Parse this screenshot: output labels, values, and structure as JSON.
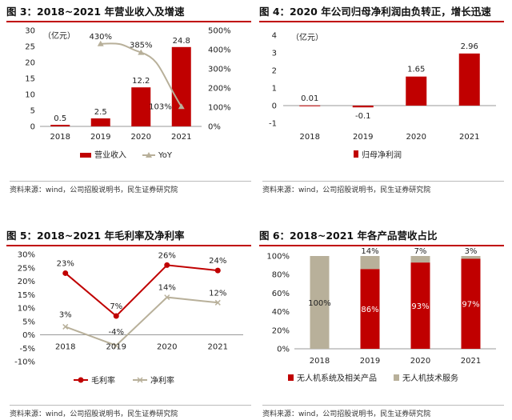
{
  "charts": [
    {
      "title": "图 3：2018~2021 年营业收入及增速",
      "source": "资料来源：wind，公司招股说明书，民生证券研究院",
      "chart_data": {
        "type": "bar+line",
        "categories": [
          "2018",
          "2019",
          "2020",
          "2021"
        ],
        "unit": "（亿元）",
        "bar": {
          "name": "营业收入",
          "values": [
            0.5,
            2.5,
            12.2,
            24.8
          ],
          "labels": [
            "0.5",
            "2.5",
            "12.2",
            "24.8"
          ],
          "color": "#c00000"
        },
        "line": {
          "name": "YoY",
          "values": [
            null,
            430,
            385,
            103
          ],
          "labels": [
            "",
            "430%",
            "385%",
            "103%"
          ],
          "color": "#b8b09a"
        },
        "ylim": [
          0,
          30
        ],
        "yticks": [
          "0",
          "5",
          "10",
          "15",
          "20",
          "25",
          "30"
        ],
        "y2lim": [
          0,
          500
        ],
        "y2ticks": [
          "0%",
          "100%",
          "200%",
          "300%",
          "400%",
          "500%"
        ]
      }
    },
    {
      "title": "图 4：2020 年公司归母净利润由负转正，增长迅速",
      "source": "资料来源：wind，公司招股说明书，民生证券研究院",
      "chart_data": {
        "type": "bar",
        "categories": [
          "2018",
          "2019",
          "2020",
          "2021"
        ],
        "unit": "（亿元）",
        "series": [
          {
            "name": "归母净利润",
            "values": [
              0.01,
              -0.1,
              1.65,
              2.96
            ],
            "labels": [
              "0.01",
              "-0.1",
              "1.65",
              "2.96"
            ],
            "color": "#c00000"
          }
        ],
        "ylim": [
          -1,
          4
        ],
        "yticks": [
          "-1",
          "0",
          "1",
          "2",
          "3",
          "4"
        ]
      }
    },
    {
      "title": "图 5：2018~2021 年毛利率及净利率",
      "source": "资料来源：wind，公司招股说明书，民生证券研究院",
      "chart_data": {
        "type": "line",
        "categories": [
          "2018",
          "2019",
          "2020",
          "2021"
        ],
        "series": [
          {
            "name": "毛利率",
            "values": [
              23,
              7,
              26,
              24
            ],
            "labels": [
              "23%",
              "7%",
              "26%",
              "24%"
            ],
            "color": "#c00000"
          },
          {
            "name": "净利率",
            "values": [
              3,
              -4,
              14,
              12
            ],
            "labels": [
              "3%",
              "-4%",
              "14%",
              "12%"
            ],
            "color": "#b8b09a"
          }
        ],
        "ylim": [
          -10,
          30
        ],
        "yticks": [
          "-10%",
          "-5%",
          "0%",
          "5%",
          "10%",
          "15%",
          "20%",
          "25%",
          "30%"
        ]
      }
    },
    {
      "title": "图 6：2018~2021 年各产品营收占比",
      "source": "资料来源：wind，公司招股说明书，民生证券研究院",
      "chart_data": {
        "type": "stacked-bar",
        "categories": [
          "2018",
          "2019",
          "2020",
          "2021"
        ],
        "series": [
          {
            "name": "无人机系统及相关产品",
            "values": [
              0,
              86,
              93,
              97
            ],
            "labels": [
              "",
              "86%",
              "93%",
              "97%"
            ],
            "color": "#c00000"
          },
          {
            "name": "无人机技术服务",
            "values": [
              100,
              14,
              7,
              3
            ],
            "labels": [
              "100%",
              "14%",
              "7%",
              "3%"
            ],
            "color": "#b8b09a"
          }
        ],
        "ylim": [
          0,
          100
        ],
        "yticks": [
          "0%",
          "20%",
          "40%",
          "60%",
          "80%",
          "100%"
        ]
      }
    }
  ]
}
